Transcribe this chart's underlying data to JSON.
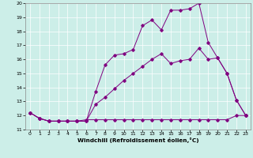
{
  "xlabel": "Windchill (Refroidissement éolien,°C)",
  "bg_color": "#cceee8",
  "line_color": "#800080",
  "xlim": [
    -0.5,
    23.5
  ],
  "ylim": [
    11,
    20
  ],
  "xticks": [
    0,
    1,
    2,
    3,
    4,
    5,
    6,
    7,
    8,
    9,
    10,
    11,
    12,
    13,
    14,
    15,
    16,
    17,
    18,
    19,
    20,
    21,
    22,
    23
  ],
  "yticks": [
    11,
    12,
    13,
    14,
    15,
    16,
    17,
    18,
    19,
    20
  ],
  "series1_x": [
    0,
    1,
    2,
    3,
    4,
    5,
    6,
    7,
    8,
    9,
    10,
    11,
    12,
    13,
    14,
    15,
    16,
    17,
    18,
    19,
    20,
    21,
    22,
    23
  ],
  "series1_y": [
    12.2,
    11.8,
    11.6,
    11.6,
    11.6,
    11.6,
    11.6,
    13.7,
    15.6,
    16.3,
    16.4,
    16.7,
    18.4,
    18.8,
    18.1,
    19.5,
    19.5,
    19.6,
    20.0,
    17.2,
    16.1,
    15.0,
    13.1,
    12.0
  ],
  "series2_x": [
    0,
    1,
    2,
    3,
    4,
    5,
    6,
    7,
    8,
    9,
    10,
    11,
    12,
    13,
    14,
    15,
    16,
    17,
    18,
    19,
    20,
    21,
    22,
    23
  ],
  "series2_y": [
    12.2,
    11.8,
    11.6,
    11.6,
    11.6,
    11.6,
    11.6,
    12.8,
    13.3,
    13.9,
    14.5,
    15.0,
    15.5,
    16.0,
    16.4,
    15.7,
    15.9,
    16.0,
    16.8,
    16.0,
    16.1,
    15.0,
    13.1,
    12.0
  ],
  "series3_x": [
    0,
    1,
    2,
    3,
    4,
    5,
    6,
    7,
    8,
    9,
    10,
    11,
    12,
    13,
    14,
    15,
    16,
    17,
    18,
    19,
    20,
    21,
    22,
    23
  ],
  "series3_y": [
    12.2,
    11.8,
    11.6,
    11.6,
    11.6,
    11.6,
    11.7,
    11.7,
    11.7,
    11.7,
    11.7,
    11.7,
    11.7,
    11.7,
    11.7,
    11.7,
    11.7,
    11.7,
    11.7,
    11.7,
    11.7,
    11.7,
    12.0,
    12.0
  ]
}
